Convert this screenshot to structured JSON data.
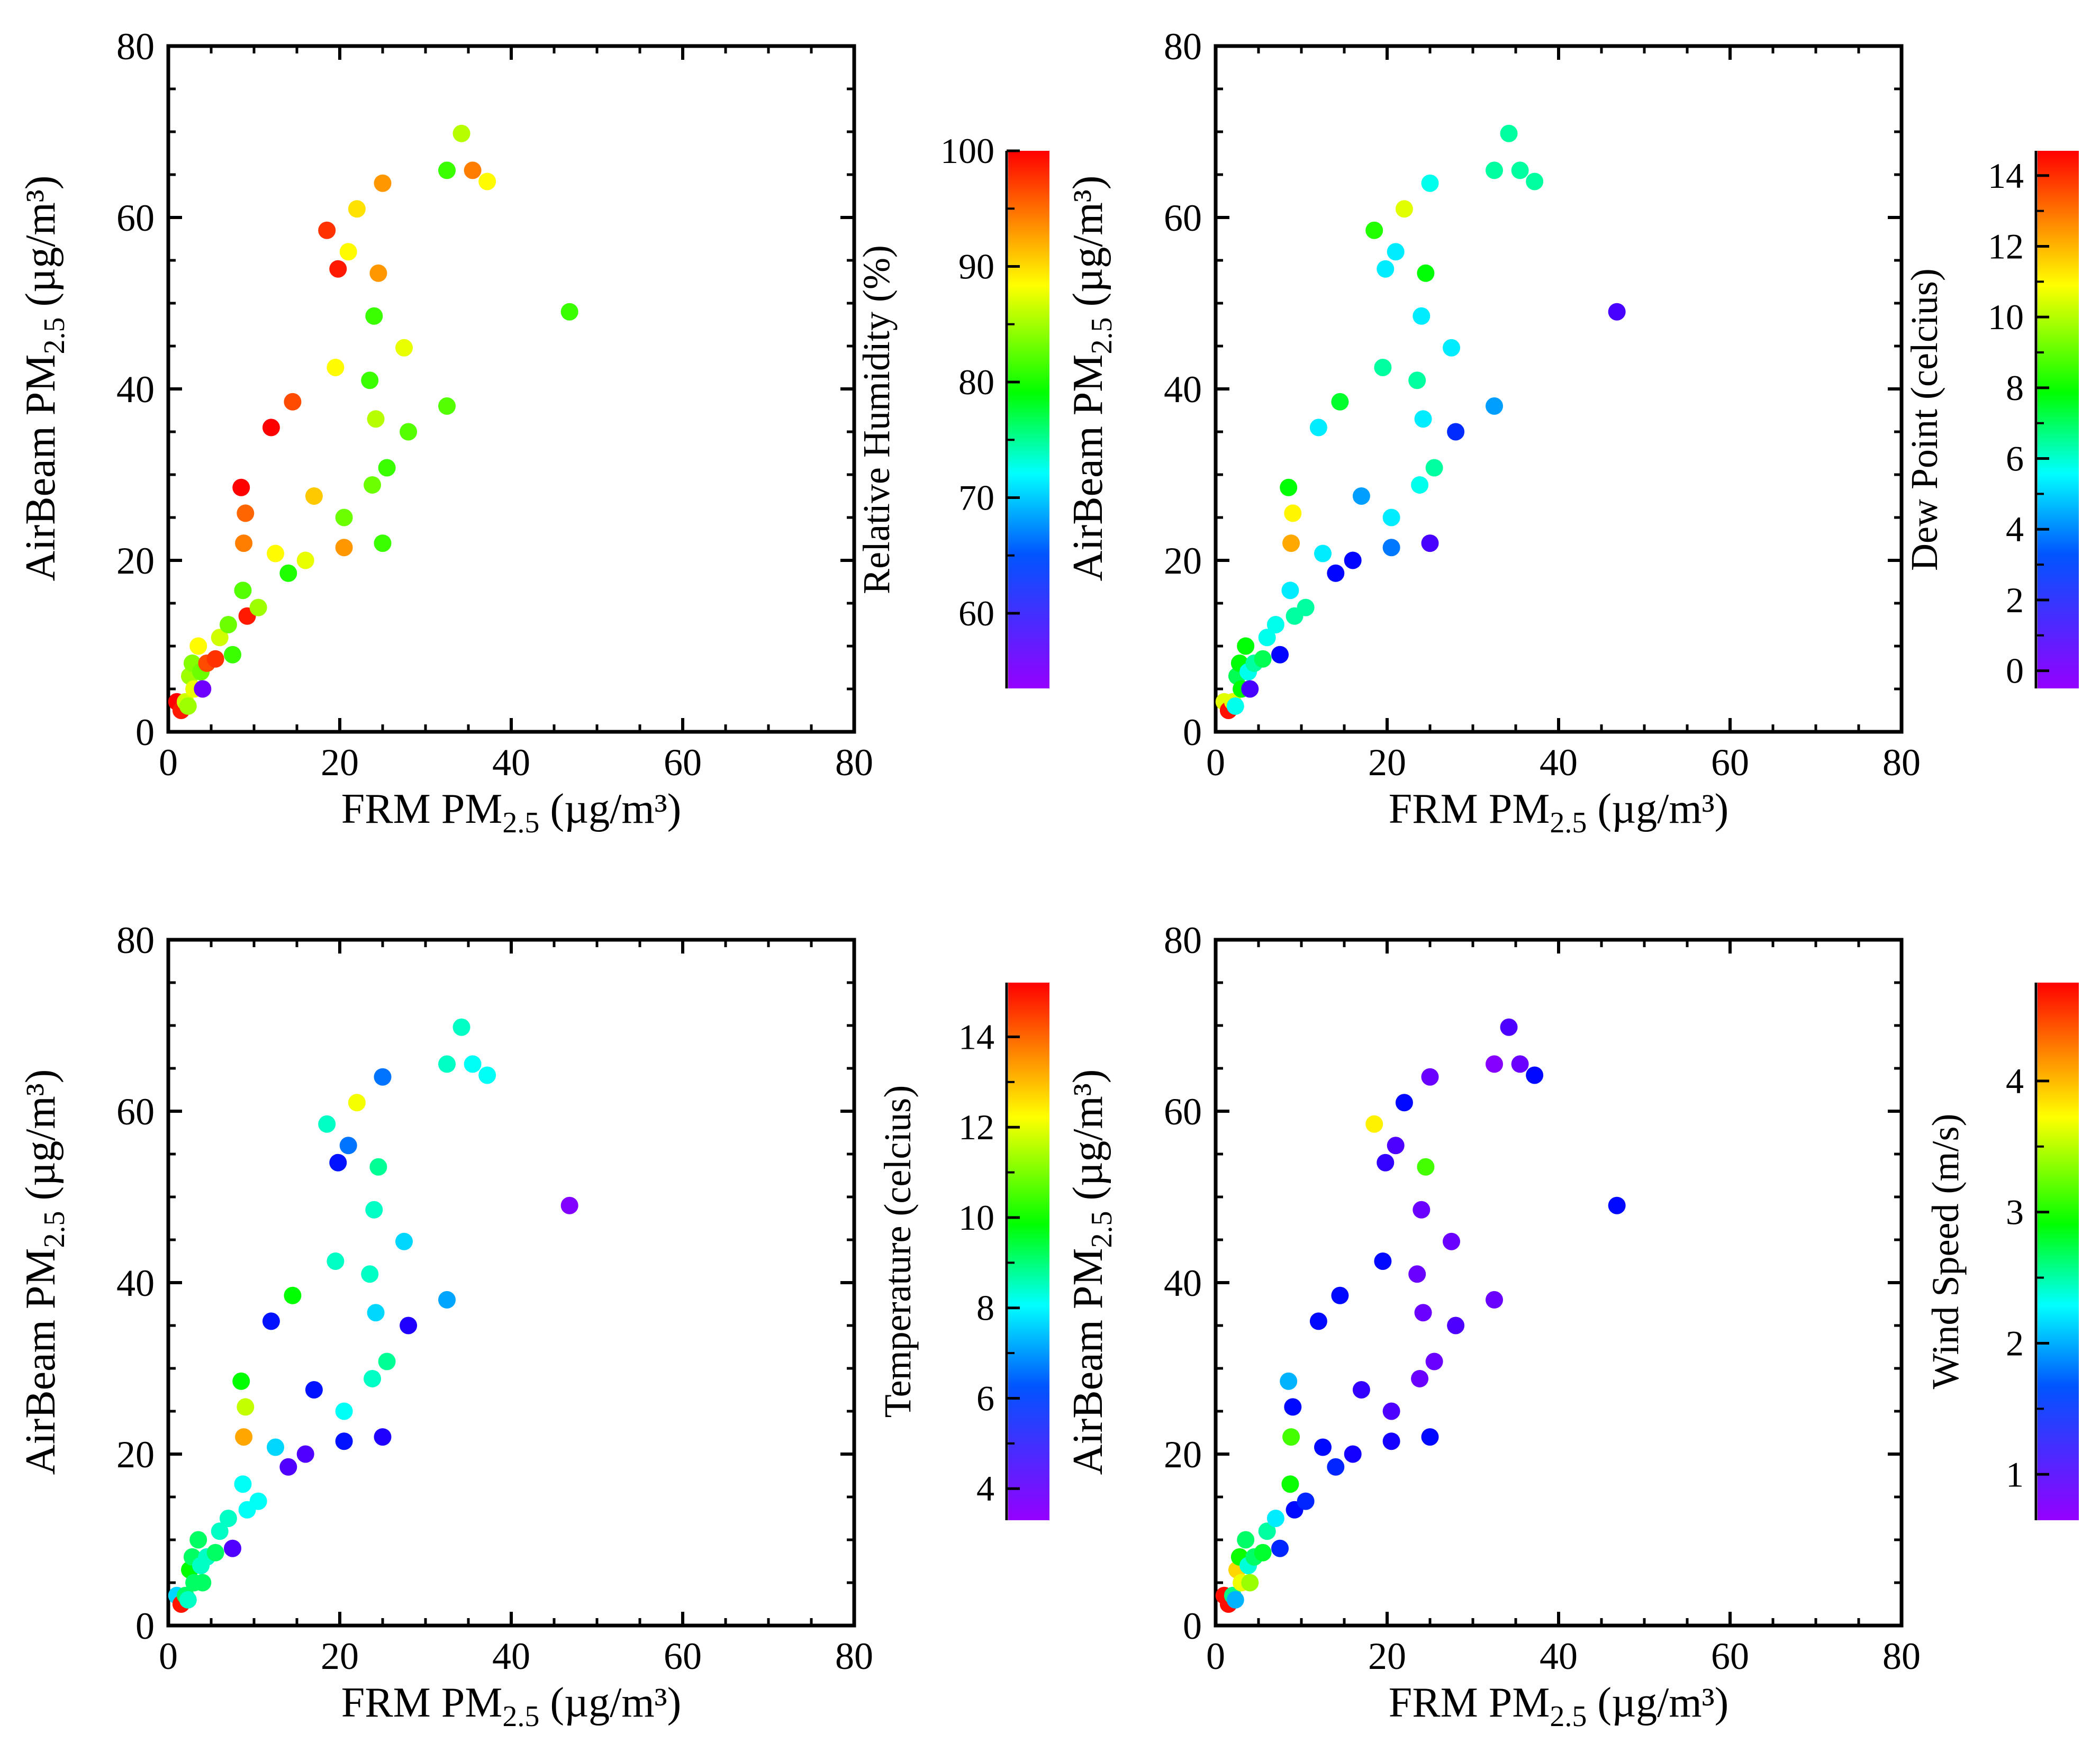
{
  "figure": {
    "panel_count": 4
  },
  "common": {
    "x_label_prefix": "FRM  PM",
    "x_label_sub": "2.5",
    "x_label_suffix": " (µg/m³)",
    "y_label_prefix": "AirBeam PM",
    "y_label_sub": "2.5",
    "y_label_suffix": " (µg/m³)"
  },
  "chart_data": [
    {
      "type": "scatter",
      "title": "",
      "xlabel": "FRM PM2.5 (µg/m³)",
      "ylabel": "AirBeam PM2.5 (µg/m³)",
      "xlim": [
        0,
        80
      ],
      "ylim": [
        0,
        80
      ],
      "xticks": [
        "0",
        "20",
        "40",
        "60",
        "80"
      ],
      "yticks": [
        "0",
        "20",
        "40",
        "60",
        "80"
      ],
      "grid": false,
      "colorbar": {
        "label": "Relative Humidity (%)",
        "range": [
          53.5,
          100
        ],
        "ticks": [
          60,
          70,
          80,
          90,
          100
        ],
        "tick_labels": [
          "60",
          "70",
          "80",
          "90",
          "100"
        ]
      },
      "points": [
        {
          "x": 1.0,
          "y": 3.5,
          "c": 100
        },
        {
          "x": 1.5,
          "y": 2.5,
          "c": 99
        },
        {
          "x": 2.0,
          "y": 3.5,
          "c": 88
        },
        {
          "x": 2.3,
          "y": 3.0,
          "c": 86
        },
        {
          "x": 2.5,
          "y": 6.5,
          "c": 86
        },
        {
          "x": 2.8,
          "y": 8.0,
          "c": 85
        },
        {
          "x": 3.0,
          "y": 5.0,
          "c": 89
        },
        {
          "x": 3.5,
          "y": 10.0,
          "c": 90
        },
        {
          "x": 3.8,
          "y": 7.0,
          "c": 84
        },
        {
          "x": 4.0,
          "y": 5.0,
          "c": 55
        },
        {
          "x": 4.5,
          "y": 8.0,
          "c": 97
        },
        {
          "x": 5.5,
          "y": 8.5,
          "c": 98
        },
        {
          "x": 6.0,
          "y": 11.0,
          "c": 88
        },
        {
          "x": 7.0,
          "y": 12.5,
          "c": 84
        },
        {
          "x": 7.5,
          "y": 9.0,
          "c": 82
        },
        {
          "x": 8.5,
          "y": 28.5,
          "c": 100
        },
        {
          "x": 8.7,
          "y": 16.5,
          "c": 83
        },
        {
          "x": 8.8,
          "y": 22.0,
          "c": 95
        },
        {
          "x": 9.0,
          "y": 25.5,
          "c": 96
        },
        {
          "x": 9.2,
          "y": 13.5,
          "c": 99
        },
        {
          "x": 10.5,
          "y": 14.5,
          "c": 86
        },
        {
          "x": 12.0,
          "y": 35.5,
          "c": 100
        },
        {
          "x": 12.5,
          "y": 20.8,
          "c": 90
        },
        {
          "x": 14.0,
          "y": 18.5,
          "c": 81
        },
        {
          "x": 14.5,
          "y": 38.5,
          "c": 97
        },
        {
          "x": 16.0,
          "y": 20.0,
          "c": 89
        },
        {
          "x": 17.0,
          "y": 27.5,
          "c": 92
        },
        {
          "x": 18.5,
          "y": 58.5,
          "c": 98
        },
        {
          "x": 19.5,
          "y": 42.5,
          "c": 90
        },
        {
          "x": 19.8,
          "y": 54.0,
          "c": 99
        },
        {
          "x": 20.5,
          "y": 21.5,
          "c": 94
        },
        {
          "x": 20.5,
          "y": 25.0,
          "c": 84
        },
        {
          "x": 21.0,
          "y": 56.0,
          "c": 90
        },
        {
          "x": 22.0,
          "y": 61.0,
          "c": 91
        },
        {
          "x": 23.5,
          "y": 41.0,
          "c": 82
        },
        {
          "x": 23.8,
          "y": 28.8,
          "c": 84
        },
        {
          "x": 24.0,
          "y": 48.5,
          "c": 82
        },
        {
          "x": 24.2,
          "y": 36.5,
          "c": 87
        },
        {
          "x": 24.5,
          "y": 53.5,
          "c": 94
        },
        {
          "x": 25.0,
          "y": 22.0,
          "c": 82
        },
        {
          "x": 25.0,
          "y": 64.0,
          "c": 94
        },
        {
          "x": 25.5,
          "y": 30.8,
          "c": 82
        },
        {
          "x": 27.5,
          "y": 44.8,
          "c": 89
        },
        {
          "x": 28.0,
          "y": 35.0,
          "c": 83
        },
        {
          "x": 32.5,
          "y": 38.0,
          "c": 83
        },
        {
          "x": 32.5,
          "y": 65.5,
          "c": 82
        },
        {
          "x": 34.2,
          "y": 69.8,
          "c": 87
        },
        {
          "x": 35.5,
          "y": 65.5,
          "c": 95
        },
        {
          "x": 37.2,
          "y": 64.2,
          "c": 90
        },
        {
          "x": 46.8,
          "y": 49.0,
          "c": 82
        }
      ]
    },
    {
      "type": "scatter",
      "title": "",
      "xlabel": "FRM PM2.5 (µg/m³)",
      "ylabel": "AirBeam PM2.5 (µg/m³)",
      "xlim": [
        0,
        80
      ],
      "ylim": [
        0,
        80
      ],
      "xticks": [
        "0",
        "20",
        "40",
        "60",
        "80"
      ],
      "yticks": [
        "0",
        "20",
        "40",
        "60",
        "80"
      ],
      "grid": false,
      "colorbar": {
        "label": "Dew Point (celcius)",
        "range": [
          -0.5,
          14.7
        ],
        "ticks": [
          0,
          2,
          4,
          6,
          8,
          10,
          12,
          14
        ],
        "tick_labels": [
          "0",
          "2",
          "4",
          "6",
          "8",
          "10",
          "12",
          "14"
        ]
      },
      "points": [
        {
          "x": 1.0,
          "y": 3.5,
          "c": 11
        },
        {
          "x": 1.5,
          "y": 2.5,
          "c": 14.5
        },
        {
          "x": 2.0,
          "y": 3.5,
          "c": 11
        },
        {
          "x": 2.3,
          "y": 3.0,
          "c": 5
        },
        {
          "x": 2.5,
          "y": 6.5,
          "c": 7
        },
        {
          "x": 2.8,
          "y": 8.0,
          "c": 8
        },
        {
          "x": 3.0,
          "y": 5.0,
          "c": 8
        },
        {
          "x": 3.5,
          "y": 10.0,
          "c": 8
        },
        {
          "x": 3.8,
          "y": 7.0,
          "c": 5
        },
        {
          "x": 4.0,
          "y": 5.0,
          "c": 0.5
        },
        {
          "x": 4.5,
          "y": 8.0,
          "c": 6
        },
        {
          "x": 5.5,
          "y": 8.5,
          "c": 7
        },
        {
          "x": 6.0,
          "y": 11.0,
          "c": 5
        },
        {
          "x": 7.0,
          "y": 12.5,
          "c": 5
        },
        {
          "x": 7.5,
          "y": 9.0,
          "c": 1.5
        },
        {
          "x": 8.5,
          "y": 28.5,
          "c": 8
        },
        {
          "x": 8.7,
          "y": 16.5,
          "c": 4.5
        },
        {
          "x": 8.8,
          "y": 22.0,
          "c": 12.5
        },
        {
          "x": 9.0,
          "y": 25.5,
          "c": 11.5
        },
        {
          "x": 9.2,
          "y": 13.5,
          "c": 6
        },
        {
          "x": 10.5,
          "y": 14.5,
          "c": 6
        },
        {
          "x": 12.0,
          "y": 35.5,
          "c": 4.5
        },
        {
          "x": 12.5,
          "y": 20.8,
          "c": 4.5
        },
        {
          "x": 14.0,
          "y": 18.5,
          "c": 1.5
        },
        {
          "x": 14.5,
          "y": 38.5,
          "c": 7.5
        },
        {
          "x": 16.0,
          "y": 20.0,
          "c": 1.5
        },
        {
          "x": 17.0,
          "y": 27.5,
          "c": 3.5
        },
        {
          "x": 18.5,
          "y": 58.5,
          "c": 8.5
        },
        {
          "x": 19.5,
          "y": 42.5,
          "c": 6
        },
        {
          "x": 19.8,
          "y": 54.0,
          "c": 4.5
        },
        {
          "x": 20.5,
          "y": 21.5,
          "c": 3
        },
        {
          "x": 20.5,
          "y": 25.0,
          "c": 4.5
        },
        {
          "x": 21.0,
          "y": 56.0,
          "c": 4.5
        },
        {
          "x": 22.0,
          "y": 61.0,
          "c": 11
        },
        {
          "x": 23.5,
          "y": 41.0,
          "c": 6
        },
        {
          "x": 23.8,
          "y": 28.8,
          "c": 5
        },
        {
          "x": 24.0,
          "y": 48.5,
          "c": 4.5
        },
        {
          "x": 24.2,
          "y": 36.5,
          "c": 4.5
        },
        {
          "x": 24.5,
          "y": 53.5,
          "c": 8
        },
        {
          "x": 25.0,
          "y": 22.0,
          "c": 0.5
        },
        {
          "x": 25.0,
          "y": 64.0,
          "c": 5
        },
        {
          "x": 25.5,
          "y": 30.8,
          "c": 6
        },
        {
          "x": 27.5,
          "y": 44.8,
          "c": 4.5
        },
        {
          "x": 28.0,
          "y": 35.0,
          "c": 2
        },
        {
          "x": 32.5,
          "y": 38.0,
          "c": 3.5
        },
        {
          "x": 32.5,
          "y": 65.5,
          "c": 6
        },
        {
          "x": 34.2,
          "y": 69.8,
          "c": 6
        },
        {
          "x": 35.5,
          "y": 65.5,
          "c": 6
        },
        {
          "x": 37.2,
          "y": 64.2,
          "c": 6
        },
        {
          "x": 46.8,
          "y": 49.0,
          "c": 0.5
        }
      ]
    },
    {
      "type": "scatter",
      "title": "",
      "xlabel": "FRM PM2.5 (µg/m³)",
      "ylabel": "AirBeam PM2.5 (µg/m³)",
      "xlim": [
        0,
        80
      ],
      "ylim": [
        0,
        80
      ],
      "xticks": [
        "0",
        "20",
        "40",
        "60",
        "80"
      ],
      "yticks": [
        "0",
        "20",
        "40",
        "60",
        "80"
      ],
      "grid": false,
      "colorbar": {
        "label": "Temperature (celcius)",
        "range": [
          3.3,
          15.2
        ],
        "ticks": [
          4,
          6,
          8,
          10,
          12,
          14
        ],
        "tick_labels": [
          "4",
          "6",
          "8",
          "10",
          "12",
          "14"
        ]
      },
      "points": [
        {
          "x": 1.0,
          "y": 3.5,
          "c": 7
        },
        {
          "x": 1.5,
          "y": 2.5,
          "c": 15
        },
        {
          "x": 2.0,
          "y": 3.5,
          "c": 9
        },
        {
          "x": 2.3,
          "y": 3.0,
          "c": 8
        },
        {
          "x": 2.5,
          "y": 6.5,
          "c": 10
        },
        {
          "x": 2.8,
          "y": 8.0,
          "c": 9
        },
        {
          "x": 3.0,
          "y": 5.0,
          "c": 9
        },
        {
          "x": 3.5,
          "y": 10.0,
          "c": 9
        },
        {
          "x": 3.8,
          "y": 7.0,
          "c": 8
        },
        {
          "x": 4.0,
          "y": 5.0,
          "c": 9
        },
        {
          "x": 4.5,
          "y": 8.0,
          "c": 8
        },
        {
          "x": 5.5,
          "y": 8.5,
          "c": 9
        },
        {
          "x": 6.0,
          "y": 11.0,
          "c": 8
        },
        {
          "x": 7.0,
          "y": 12.5,
          "c": 8
        },
        {
          "x": 7.5,
          "y": 9.0,
          "c": 4
        },
        {
          "x": 8.5,
          "y": 28.5,
          "c": 10
        },
        {
          "x": 8.7,
          "y": 16.5,
          "c": 7.5
        },
        {
          "x": 8.8,
          "y": 22.0,
          "c": 13.5
        },
        {
          "x": 9.0,
          "y": 25.5,
          "c": 12
        },
        {
          "x": 9.2,
          "y": 13.5,
          "c": 7.5
        },
        {
          "x": 10.5,
          "y": 14.5,
          "c": 7.5
        },
        {
          "x": 12.0,
          "y": 35.5,
          "c": 5
        },
        {
          "x": 12.5,
          "y": 20.8,
          "c": 7
        },
        {
          "x": 14.0,
          "y": 18.5,
          "c": 4
        },
        {
          "x": 14.5,
          "y": 38.5,
          "c": 10
        },
        {
          "x": 16.0,
          "y": 20.0,
          "c": 4
        },
        {
          "x": 17.0,
          "y": 27.5,
          "c": 5
        },
        {
          "x": 18.5,
          "y": 58.5,
          "c": 8
        },
        {
          "x": 19.5,
          "y": 42.5,
          "c": 8
        },
        {
          "x": 19.8,
          "y": 54.0,
          "c": 5
        },
        {
          "x": 20.5,
          "y": 21.5,
          "c": 5
        },
        {
          "x": 20.5,
          "y": 25.0,
          "c": 7.5
        },
        {
          "x": 21.0,
          "y": 56.0,
          "c": 6
        },
        {
          "x": 22.0,
          "y": 61.0,
          "c": 12.5
        },
        {
          "x": 23.5,
          "y": 41.0,
          "c": 8
        },
        {
          "x": 23.8,
          "y": 28.8,
          "c": 8
        },
        {
          "x": 24.0,
          "y": 48.5,
          "c": 8
        },
        {
          "x": 24.2,
          "y": 36.5,
          "c": 7
        },
        {
          "x": 24.5,
          "y": 53.5,
          "c": 8.5
        },
        {
          "x": 25.0,
          "y": 22.0,
          "c": 4.5
        },
        {
          "x": 25.0,
          "y": 64.0,
          "c": 6
        },
        {
          "x": 25.5,
          "y": 30.8,
          "c": 8.5
        },
        {
          "x": 27.5,
          "y": 44.8,
          "c": 7
        },
        {
          "x": 28.0,
          "y": 35.0,
          "c": 4.5
        },
        {
          "x": 32.5,
          "y": 38.0,
          "c": 6.5
        },
        {
          "x": 32.5,
          "y": 65.5,
          "c": 8
        },
        {
          "x": 34.2,
          "y": 69.8,
          "c": 8
        },
        {
          "x": 35.5,
          "y": 65.5,
          "c": 7.5
        },
        {
          "x": 37.2,
          "y": 64.2,
          "c": 7.5
        },
        {
          "x": 46.8,
          "y": 49.0,
          "c": 3.5
        }
      ]
    },
    {
      "type": "scatter",
      "title": "",
      "xlabel": "FRM PM2.5 (µg/m³)",
      "ylabel": "AirBeam PM2.5 (µg/m³)",
      "xlim": [
        0,
        80
      ],
      "ylim": [
        0,
        80
      ],
      "xticks": [
        "0",
        "20",
        "40",
        "60",
        "80"
      ],
      "yticks": [
        "0",
        "20",
        "40",
        "60",
        "80"
      ],
      "grid": false,
      "colorbar": {
        "label": "Wind Speed (m/s)",
        "range": [
          0.65,
          4.75
        ],
        "ticks": [
          1,
          2,
          3,
          4
        ],
        "tick_labels": [
          "1",
          "2",
          "3",
          "4"
        ]
      },
      "points": [
        {
          "x": 1.0,
          "y": 3.5,
          "c": 4.7
        },
        {
          "x": 1.5,
          "y": 2.5,
          "c": 4.7
        },
        {
          "x": 2.0,
          "y": 3.5,
          "c": 2.5
        },
        {
          "x": 2.3,
          "y": 3.0,
          "c": 1.8
        },
        {
          "x": 2.5,
          "y": 6.5,
          "c": 4.0
        },
        {
          "x": 2.8,
          "y": 8.0,
          "c": 3.0
        },
        {
          "x": 3.0,
          "y": 5.0,
          "c": 3.8
        },
        {
          "x": 3.5,
          "y": 10.0,
          "c": 2.6
        },
        {
          "x": 3.8,
          "y": 7.0,
          "c": 2.2
        },
        {
          "x": 4.0,
          "y": 5.0,
          "c": 3.5
        },
        {
          "x": 4.5,
          "y": 8.0,
          "c": 2.6
        },
        {
          "x": 5.5,
          "y": 8.5,
          "c": 2.8
        },
        {
          "x": 6.0,
          "y": 11.0,
          "c": 2.4
        },
        {
          "x": 7.0,
          "y": 12.5,
          "c": 2.0
        },
        {
          "x": 7.5,
          "y": 9.0,
          "c": 1.3
        },
        {
          "x": 8.5,
          "y": 28.5,
          "c": 1.8
        },
        {
          "x": 8.7,
          "y": 16.5,
          "c": 3.0
        },
        {
          "x": 8.8,
          "y": 22.0,
          "c": 3.2
        },
        {
          "x": 9.0,
          "y": 25.5,
          "c": 1.2
        },
        {
          "x": 9.2,
          "y": 13.5,
          "c": 1.2
        },
        {
          "x": 10.5,
          "y": 14.5,
          "c": 1.3
        },
        {
          "x": 12.0,
          "y": 35.5,
          "c": 1.2
        },
        {
          "x": 12.5,
          "y": 20.8,
          "c": 1.2
        },
        {
          "x": 14.0,
          "y": 18.5,
          "c": 1.3
        },
        {
          "x": 14.5,
          "y": 38.5,
          "c": 1.2
        },
        {
          "x": 16.0,
          "y": 20.0,
          "c": 1.1
        },
        {
          "x": 17.0,
          "y": 27.5,
          "c": 1.0
        },
        {
          "x": 18.5,
          "y": 58.5,
          "c": 3.9
        },
        {
          "x": 19.5,
          "y": 42.5,
          "c": 1.2
        },
        {
          "x": 19.8,
          "y": 54.0,
          "c": 1.0
        },
        {
          "x": 20.5,
          "y": 21.5,
          "c": 1.1
        },
        {
          "x": 20.5,
          "y": 25.0,
          "c": 0.9
        },
        {
          "x": 21.0,
          "y": 56.0,
          "c": 0.9
        },
        {
          "x": 22.0,
          "y": 61.0,
          "c": 1.2
        },
        {
          "x": 23.5,
          "y": 41.0,
          "c": 0.8
        },
        {
          "x": 23.8,
          "y": 28.8,
          "c": 0.8
        },
        {
          "x": 24.0,
          "y": 48.5,
          "c": 0.8
        },
        {
          "x": 24.2,
          "y": 36.5,
          "c": 0.8
        },
        {
          "x": 24.5,
          "y": 53.5,
          "c": 3.2
        },
        {
          "x": 25.0,
          "y": 22.0,
          "c": 1.2
        },
        {
          "x": 25.0,
          "y": 64.0,
          "c": 0.8
        },
        {
          "x": 25.5,
          "y": 30.8,
          "c": 0.8
        },
        {
          "x": 27.5,
          "y": 44.8,
          "c": 0.8
        },
        {
          "x": 28.0,
          "y": 35.0,
          "c": 0.9
        },
        {
          "x": 32.5,
          "y": 38.0,
          "c": 0.8
        },
        {
          "x": 32.5,
          "y": 65.5,
          "c": 0.7
        },
        {
          "x": 34.2,
          "y": 69.8,
          "c": 0.9
        },
        {
          "x": 35.5,
          "y": 65.5,
          "c": 0.8
        },
        {
          "x": 37.2,
          "y": 64.2,
          "c": 1.2
        },
        {
          "x": 46.8,
          "y": 49.0,
          "c": 1.2
        }
      ]
    }
  ]
}
